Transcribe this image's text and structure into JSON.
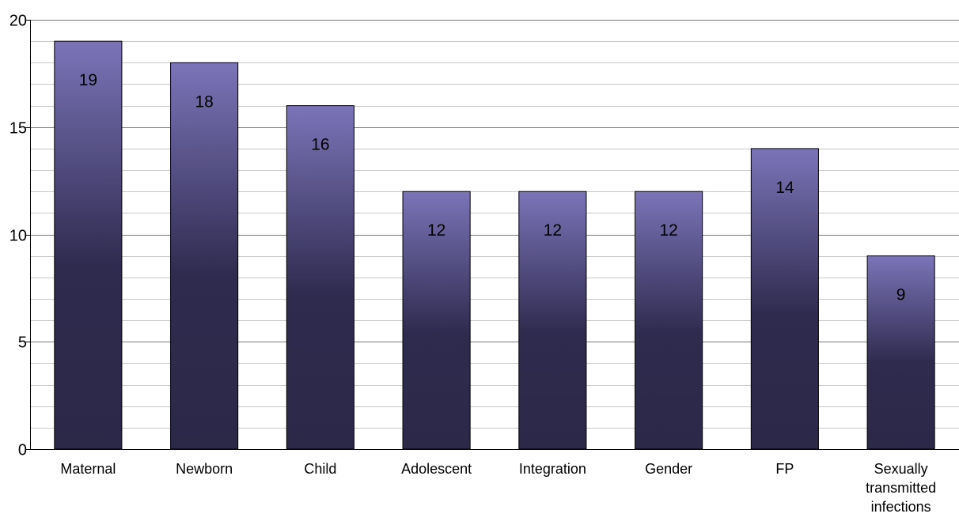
{
  "chart_data": {
    "type": "bar",
    "title": "",
    "xlabel": "",
    "ylabel": "",
    "categories": [
      "Maternal",
      "Newborn",
      "Child",
      "Adolescent",
      "Integration",
      "Gender",
      "FP",
      "Sexually transmitted infections"
    ],
    "category_lines": [
      [
        "Maternal"
      ],
      [
        "Newborn"
      ],
      [
        "Child"
      ],
      [
        "Adolescent"
      ],
      [
        "Integration"
      ],
      [
        "Gender"
      ],
      [
        "FP"
      ],
      [
        "Sexually",
        "transmitted",
        "infections"
      ]
    ],
    "values": [
      19,
      18,
      16,
      12,
      12,
      12,
      14,
      9
    ],
    "data_labels": [
      "19",
      "18",
      "16",
      "12",
      "12",
      "12",
      "14",
      "9"
    ],
    "ylim": [
      0,
      20
    ],
    "y_ticks": [
      0,
      5,
      10,
      15,
      20
    ],
    "y_tick_labels": [
      "0",
      "5",
      "10",
      "15",
      "20"
    ],
    "minor_grid_step": 1,
    "grid": true,
    "legend": "none",
    "bar_color_top": "#7b74b8",
    "bar_color_bottom": "#2c2848",
    "grid_color": "#c8c8c8"
  }
}
